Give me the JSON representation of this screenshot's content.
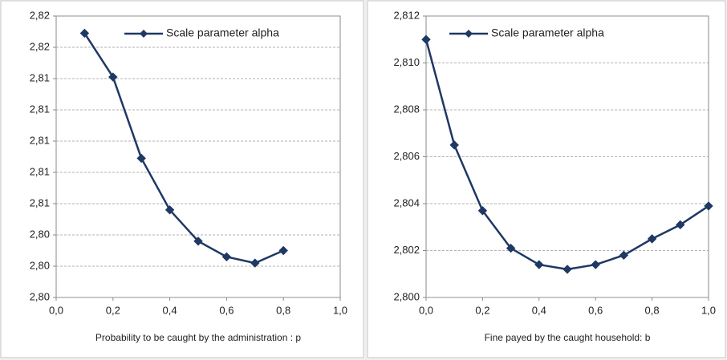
{
  "chart_data": [
    {
      "type": "line",
      "x": [
        0.1,
        0.2,
        0.3,
        0.4,
        0.5,
        0.6,
        0.7,
        0.8
      ],
      "series": [
        {
          "name": "Scale parameter alpha",
          "color": "#1f3864",
          "values": [
            2.8169,
            2.8141,
            2.8089,
            2.8056,
            2.8036,
            2.8026,
            2.8022,
            2.803
          ]
        }
      ],
      "xlim": [
        0,
        1
      ],
      "xticks": [
        {
          "value": 0,
          "label": "0,0"
        },
        {
          "value": 0.2,
          "label": "0,2"
        },
        {
          "value": 0.4,
          "label": "0,4"
        },
        {
          "value": 0.6,
          "label": "0,6"
        },
        {
          "value": 0.8,
          "label": "0,8"
        },
        {
          "value": 1,
          "label": "1,0"
        }
      ],
      "ylim": [
        2.8,
        2.818
      ],
      "yticks": [
        {
          "value": 2.8,
          "label": "2,80"
        },
        {
          "value": 2.802,
          "label": "2,80"
        },
        {
          "value": 2.804,
          "label": "2,80"
        },
        {
          "value": 2.806,
          "label": "2,81"
        },
        {
          "value": 2.808,
          "label": "2,81"
        },
        {
          "value": 2.81,
          "label": "2,81"
        },
        {
          "value": 2.812,
          "label": "2,81"
        },
        {
          "value": 2.814,
          "label": "2,81"
        },
        {
          "value": 2.816,
          "label": "2,82"
        },
        {
          "value": 2.818,
          "label": "2,82"
        }
      ],
      "xlabel": "Probability to be caught by the administration : p",
      "grid": true,
      "legend": "top"
    },
    {
      "type": "line",
      "x": [
        0,
        0.1,
        0.2,
        0.3,
        0.4,
        0.5,
        0.6,
        0.7,
        0.8,
        0.9,
        1
      ],
      "series": [
        {
          "name": "Scale parameter alpha",
          "color": "#1f3864",
          "values": [
            2.811,
            2.8065,
            2.8037,
            2.8021,
            2.8014,
            2.8012,
            2.8014,
            2.8018,
            2.8025,
            2.8031,
            2.8039
          ]
        }
      ],
      "xlim": [
        0,
        1
      ],
      "xticks": [
        {
          "value": 0,
          "label": "0,0"
        },
        {
          "value": 0.2,
          "label": "0,2"
        },
        {
          "value": 0.4,
          "label": "0,4"
        },
        {
          "value": 0.6,
          "label": "0,6"
        },
        {
          "value": 0.8,
          "label": "0,8"
        },
        {
          "value": 1,
          "label": "1,0"
        }
      ],
      "ylim": [
        2.8,
        2.812
      ],
      "yticks": [
        {
          "value": 2.8,
          "label": "2,800"
        },
        {
          "value": 2.802,
          "label": "2,802"
        },
        {
          "value": 2.804,
          "label": "2,804"
        },
        {
          "value": 2.806,
          "label": "2,806"
        },
        {
          "value": 2.808,
          "label": "2,808"
        },
        {
          "value": 2.81,
          "label": "2,810"
        },
        {
          "value": 2.812,
          "label": "2,812"
        }
      ],
      "xlabel": "Fine payed by the caught household: b",
      "grid": true,
      "legend": "top"
    }
  ]
}
